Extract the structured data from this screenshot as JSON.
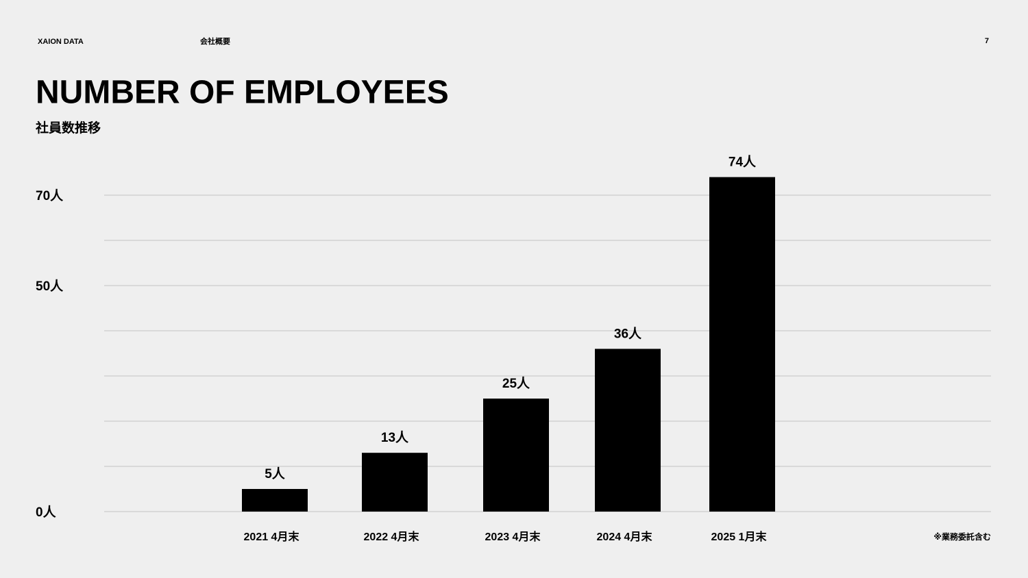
{
  "header": {
    "brand": "XAION DATA",
    "section": "会社概要",
    "page": "7"
  },
  "chart_data": {
    "type": "bar",
    "title": "NUMBER OF EMPLOYEES",
    "subtitle": "社員数推移",
    "categories": [
      "2021 4月末",
      "2022 4月末",
      "2023 4月末",
      "2024 4月末",
      "2025 1月末"
    ],
    "values": [
      5,
      13,
      25,
      36,
      74
    ],
    "value_labels": [
      "5人",
      "13人",
      "25人",
      "36人",
      "74人"
    ],
    "color": "#000000",
    "ylim": [
      0,
      75
    ],
    "yticks": [
      0,
      10,
      20,
      30,
      40,
      50,
      60,
      70
    ],
    "ytick_labels": [
      {
        "value": 0,
        "label": "0人"
      },
      {
        "value": 50,
        "label": "50人"
      },
      {
        "value": 70,
        "label": "70人"
      }
    ],
    "grid": true,
    "note": "※業務委託含む"
  }
}
